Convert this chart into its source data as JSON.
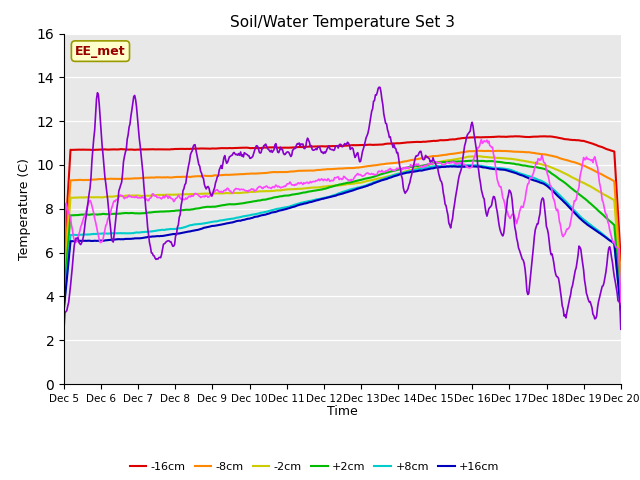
{
  "title": "Soil/Water Temperature Set 3",
  "xlabel": "Time",
  "ylabel": "Temperature (C)",
  "ylim": [
    0,
    16
  ],
  "xlim": [
    0,
    15
  ],
  "yticks": [
    0,
    2,
    4,
    6,
    8,
    10,
    12,
    14,
    16
  ],
  "xtick_labels": [
    "Dec 5",
    "Dec 6",
    "Dec 7",
    "Dec 8",
    "Dec 9",
    "Dec 10",
    "Dec 11",
    "Dec 12",
    "Dec 13",
    "Dec 14",
    "Dec 15",
    "Dec 16",
    "Dec 17",
    "Dec 18",
    "Dec 19",
    "Dec 20"
  ],
  "annotation_text": "EE_met",
  "annotation_color": "#990000",
  "annotation_bg": "#ffffcc",
  "background_color": "#e8e8e8",
  "series": {
    "-16cm": {
      "color": "#dd0000",
      "lw": 1.5
    },
    "-8cm": {
      "color": "#ff8800",
      "lw": 1.5
    },
    "-2cm": {
      "color": "#cccc00",
      "lw": 1.5
    },
    "+2cm": {
      "color": "#00bb00",
      "lw": 1.5
    },
    "+8cm": {
      "color": "#00cccc",
      "lw": 1.5
    },
    "+16cm": {
      "color": "#0000bb",
      "lw": 1.5
    },
    "+32cm": {
      "color": "#ff44ff",
      "lw": 1.2
    },
    "+64cm": {
      "color": "#8800cc",
      "lw": 1.2
    }
  }
}
